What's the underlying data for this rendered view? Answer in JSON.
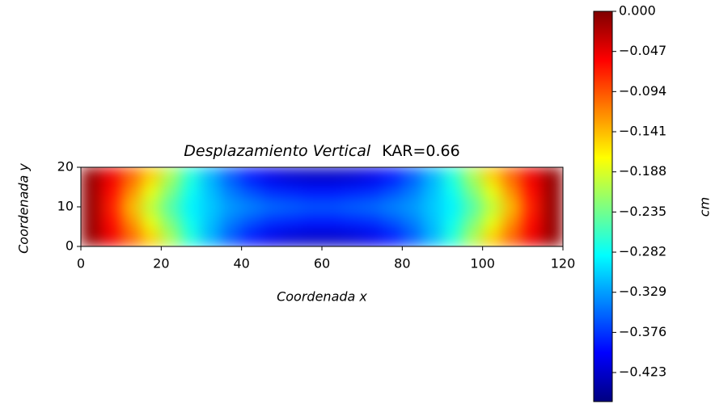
{
  "chart_data": {
    "type": "heatmap",
    "title": "Desplazamiento Vertical",
    "annotations": [
      "KAR=0.66"
    ],
    "xlabel": "Coordenada  x",
    "ylabel": "Coordenada  y",
    "colorbar_label": "cm",
    "colormap": "jet",
    "xlim": [
      0,
      120
    ],
    "xticks": [
      0,
      20,
      40,
      60,
      80,
      100,
      120
    ],
    "ylim": [
      0,
      20
    ],
    "yticks": [
      0,
      10,
      20
    ],
    "zlim": [
      -0.457,
      0
    ],
    "zticks": [
      {
        "value": 0,
        "label": "0.000"
      },
      {
        "value": -0.047,
        "label": "−0.047"
      },
      {
        "value": -0.094,
        "label": "−0.094"
      },
      {
        "value": -0.141,
        "label": "−0.141"
      },
      {
        "value": -0.188,
        "label": "−0.188"
      },
      {
        "value": -0.235,
        "label": "−0.235"
      },
      {
        "value": -0.282,
        "label": "−0.282"
      },
      {
        "value": -0.329,
        "label": "−0.329"
      },
      {
        "value": -0.376,
        "label": "−0.376"
      },
      {
        "value": -0.423,
        "label": "−0.423"
      }
    ],
    "x": [
      2.5,
      7.5,
      12.5,
      17.5,
      22.5,
      27.5,
      32.5,
      37.5,
      42.5,
      47.5,
      52.5,
      57.5,
      62.5,
      67.5,
      72.5,
      77.5,
      82.5,
      87.5,
      92.5,
      97.5,
      102.5,
      107.5,
      112.5,
      117.5
    ],
    "y": [
      2,
      6,
      10,
      14,
      18
    ],
    "z": [
      [
        -0.01,
        -0.05,
        -0.1,
        -0.15,
        -0.21,
        -0.27,
        -0.32,
        -0.36,
        -0.39,
        -0.41,
        -0.42,
        -0.425,
        -0.425,
        -0.42,
        -0.41,
        -0.39,
        -0.36,
        -0.32,
        -0.27,
        -0.21,
        -0.15,
        -0.1,
        -0.05,
        -0.01
      ],
      [
        -0.01,
        -0.06,
        -0.12,
        -0.18,
        -0.23,
        -0.28,
        -0.315,
        -0.345,
        -0.365,
        -0.38,
        -0.385,
        -0.39,
        -0.39,
        -0.385,
        -0.38,
        -0.365,
        -0.345,
        -0.315,
        -0.28,
        -0.23,
        -0.18,
        -0.12,
        -0.06,
        -0.01
      ],
      [
        -0.01,
        -0.07,
        -0.14,
        -0.2,
        -0.25,
        -0.29,
        -0.31,
        -0.33,
        -0.34,
        -0.35,
        -0.355,
        -0.36,
        -0.36,
        -0.355,
        -0.35,
        -0.34,
        -0.33,
        -0.31,
        -0.29,
        -0.25,
        -0.2,
        -0.14,
        -0.07,
        -0.01
      ],
      [
        -0.01,
        -0.06,
        -0.12,
        -0.18,
        -0.23,
        -0.28,
        -0.315,
        -0.345,
        -0.365,
        -0.38,
        -0.385,
        -0.39,
        -0.39,
        -0.385,
        -0.38,
        -0.365,
        -0.345,
        -0.315,
        -0.28,
        -0.23,
        -0.18,
        -0.12,
        -0.06,
        -0.01
      ],
      [
        -0.01,
        -0.05,
        -0.1,
        -0.15,
        -0.21,
        -0.27,
        -0.32,
        -0.36,
        -0.39,
        -0.41,
        -0.42,
        -0.425,
        -0.425,
        -0.42,
        -0.41,
        -0.39,
        -0.36,
        -0.32,
        -0.27,
        -0.21,
        -0.15,
        -0.1,
        -0.05,
        -0.01
      ]
    ]
  }
}
